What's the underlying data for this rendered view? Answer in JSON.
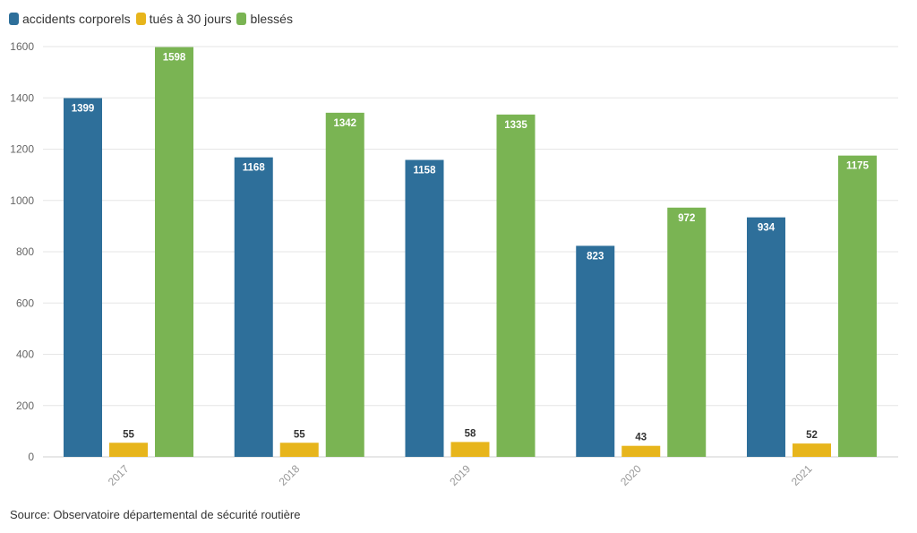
{
  "chart_data": {
    "type": "bar",
    "categories": [
      "2017",
      "2018",
      "2019",
      "2020",
      "2021"
    ],
    "series": [
      {
        "name": "accidents corporels",
        "color": "#2e6f9a",
        "values": [
          1399,
          1168,
          1158,
          823,
          934
        ]
      },
      {
        "name": "tués à 30 jours",
        "color": "#e7b51c",
        "values": [
          55,
          55,
          58,
          43,
          52
        ]
      },
      {
        "name": "blessés",
        "color": "#7ab453",
        "values": [
          1598,
          1342,
          1335,
          972,
          1175
        ]
      }
    ],
    "ylim": [
      0,
      1600
    ],
    "yticks": [
      0,
      200,
      400,
      600,
      800,
      1000,
      1200,
      1400,
      1600
    ],
    "grid": true,
    "legend": "top-left"
  },
  "source": "Source: Observatoire départemental de sécurité routière"
}
